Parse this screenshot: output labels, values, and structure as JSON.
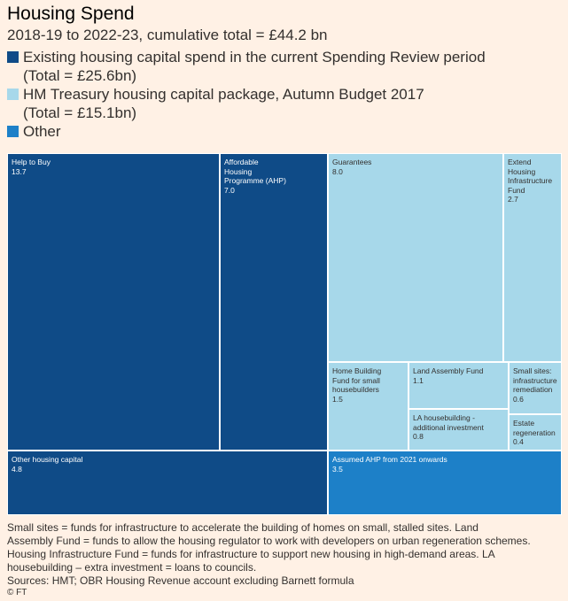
{
  "chart_data": {
    "type": "treemap",
    "title": "Housing Spend",
    "subtitle": "2018-19 to 2022-23, cumulative total = £44.2 bn",
    "legend": [
      {
        "lines": [
          "Existing housing capital spend in the current Spending Review period",
          "(Total = £25.6bn)"
        ],
        "color": "#0f4b87"
      },
      {
        "lines": [
          "HM Treasury housing capital package, Autumn Budget 2017",
          "(Total = £15.1bn)"
        ],
        "color": "#a7d8ea"
      },
      {
        "lines": [
          "Other"
        ],
        "color": "#1d80c8"
      }
    ],
    "items": [
      {
        "label": "Help to Buy",
        "value": "13.7",
        "group": "existing"
      },
      {
        "label": "Affordable\nHousing\nProgramme (AHP)",
        "value": "7.0",
        "group": "existing"
      },
      {
        "label": "Other housing capital",
        "value": "4.8",
        "group": "existing"
      },
      {
        "label": "Guarantees",
        "value": "8.0",
        "group": "budget"
      },
      {
        "label": "Extend\nHousing\nInfrastructure\nFund",
        "value": "2.7",
        "group": "budget"
      },
      {
        "label": "Home Building\nFund for small\nhousebuilders",
        "value": "1.5",
        "group": "budget"
      },
      {
        "label": "Land Assembly Fund",
        "value": "1.1",
        "group": "budget"
      },
      {
        "label": "LA housebuilding -\nadditional investment",
        "value": "0.8",
        "group": "budget"
      },
      {
        "label": "Small sites:\ninfrastructure\nremediation",
        "value": "0.6",
        "group": "budget"
      },
      {
        "label": "Estate\nregeneration",
        "value": "0.4",
        "group": "budget"
      },
      {
        "label": "Assumed AHP from 2021 onwards",
        "value": "3.5",
        "group": "other"
      }
    ]
  },
  "colors": {
    "existing": "#0f4b87",
    "budget": "#a7d8ea",
    "other": "#1d80c8",
    "existing_text": "#ffffff",
    "budget_text": "#33302e",
    "other_text": "#ffffff"
  },
  "notes": [
    "Small sites = funds for infrastructure to accelerate the building of homes on small, stalled sites. Land",
    "Assembly Fund = funds to allow the housing regulator to work with developers on urban regeneration schemes.",
    "Housing Infrastructure Fund = funds for infrastructure to support new housing in high-demand areas. LA",
    "housebuilding – extra investment = loans to councils."
  ],
  "source": "Sources: HMT; OBR Housing Revenue account excluding Barnett formula",
  "credit": "© FT"
}
